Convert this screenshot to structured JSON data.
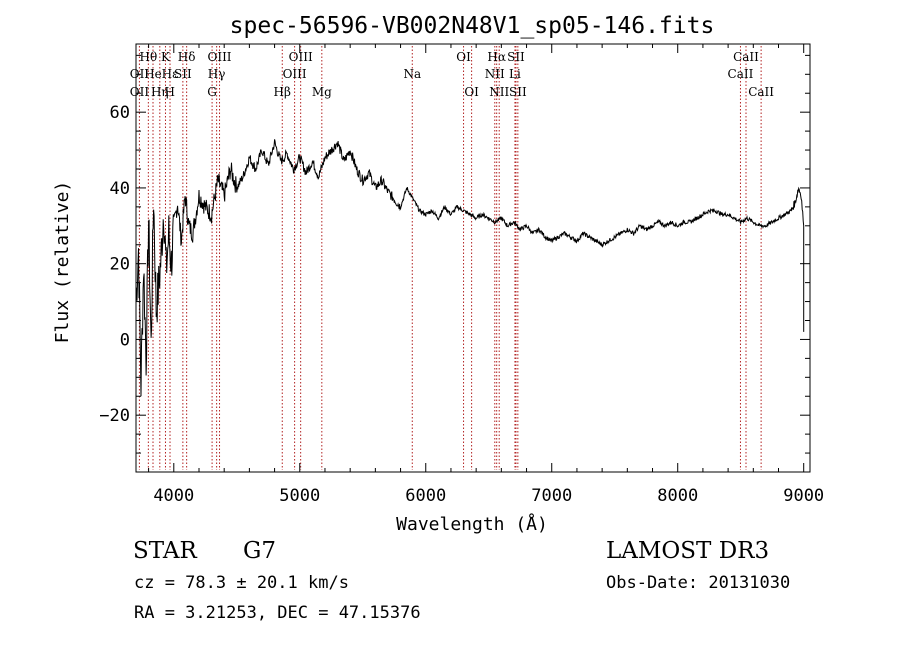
{
  "chart_data": {
    "type": "line",
    "title": "spec-56596-VB002N48V1_sp05-146.fits",
    "xlabel": "Wavelength (Å)",
    "ylabel": "Flux (relative)",
    "xlim": [
      3700,
      9050
    ],
    "ylim": [
      -35,
      78
    ],
    "x_ticks": [
      4000,
      5000,
      6000,
      7000,
      8000,
      9000
    ],
    "y_ticks": [
      -20,
      0,
      20,
      40,
      60
    ],
    "x_tick_labels": [
      "4000",
      "5000",
      "6000",
      "7000",
      "8000",
      "9000"
    ],
    "y_tick_labels": [
      "−20",
      "0",
      "20",
      "40",
      "60"
    ],
    "line_color": "#000000",
    "marker_color": "#b22222",
    "series": [
      {
        "name": "flux",
        "x": [
          3700,
          3720,
          3740,
          3760,
          3780,
          3800,
          3820,
          3840,
          3860,
          3880,
          3900,
          3920,
          3940,
          3960,
          3980,
          4000,
          4030,
          4060,
          4090,
          4120,
          4150,
          4200,
          4250,
          4300,
          4350,
          4400,
          4450,
          4500,
          4550,
          4600,
          4650,
          4700,
          4750,
          4800,
          4850,
          4900,
          4950,
          5000,
          5050,
          5100,
          5150,
          5200,
          5250,
          5300,
          5350,
          5400,
          5450,
          5500,
          5550,
          5600,
          5650,
          5700,
          5750,
          5800,
          5850,
          5900,
          5950,
          6000,
          6050,
          6100,
          6150,
          6200,
          6250,
          6300,
          6350,
          6400,
          6450,
          6500,
          6550,
          6600,
          6650,
          6700,
          6750,
          6800,
          6850,
          6900,
          6950,
          7000,
          7050,
          7100,
          7150,
          7200,
          7250,
          7300,
          7350,
          7400,
          7450,
          7500,
          7550,
          7600,
          7650,
          7700,
          7750,
          7800,
          7850,
          7900,
          7950,
          8000,
          8050,
          8100,
          8150,
          8200,
          8250,
          8300,
          8350,
          8400,
          8450,
          8500,
          8550,
          8600,
          8650,
          8700,
          8750,
          8800,
          8850,
          8900,
          8930,
          8960,
          8980,
          9000
        ],
        "y": [
          10,
          24,
          -12,
          20,
          -5,
          32,
          -2,
          38,
          8,
          14,
          22,
          35,
          18,
          28,
          20,
          30,
          36,
          26,
          38,
          30,
          28,
          38,
          35,
          33,
          42,
          38,
          45,
          40,
          43,
          48,
          45,
          50,
          46,
          52,
          47,
          49,
          45,
          48,
          44,
          47,
          43,
          48,
          50,
          52,
          47,
          50,
          45,
          42,
          44,
          40,
          42,
          39,
          37,
          35,
          40,
          37,
          34,
          33,
          34,
          32,
          35,
          33,
          35,
          34,
          33,
          32,
          33,
          32,
          31,
          32,
          30,
          31,
          29,
          30,
          28,
          29,
          27,
          26,
          27,
          28,
          27,
          26,
          28,
          27,
          26,
          25,
          26,
          27,
          28,
          29,
          28,
          30,
          29,
          30,
          31,
          30,
          31,
          30,
          31,
          31,
          32,
          33,
          34,
          34,
          33,
          33,
          32,
          31,
          32,
          31,
          30,
          30,
          31,
          32,
          33,
          34,
          36,
          40,
          38,
          30
        ]
      }
    ],
    "annotations": [
      {
        "label": "Hθ",
        "x": 3798,
        "row": 0
      },
      {
        "label": "OII",
        "x": 3727,
        "row": 1
      },
      {
        "label": "OII",
        "x": 3727,
        "row": 2
      },
      {
        "label": "He",
        "x": 3835,
        "row": 1
      },
      {
        "label": "Hη",
        "x": 3889,
        "row": 2
      },
      {
        "label": "K",
        "x": 3934,
        "row": 0
      },
      {
        "label": "Hε",
        "x": 3970,
        "row": 1
      },
      {
        "label": "H",
        "x": 3968,
        "row": 2
      },
      {
        "label": "SII",
        "x": 4072,
        "row": 1
      },
      {
        "label": "Hδ",
        "x": 4102,
        "row": 0
      },
      {
        "label": "OIII",
        "x": 4363,
        "row": 0
      },
      {
        "label": "Hγ",
        "x": 4340,
        "row": 1
      },
      {
        "label": "G",
        "x": 4304,
        "row": 2
      },
      {
        "label": "Hβ",
        "x": 4861,
        "row": 2
      },
      {
        "label": "OIII",
        "x": 5007,
        "row": 0
      },
      {
        "label": "OIII",
        "x": 4959,
        "row": 1
      },
      {
        "label": "Mg",
        "x": 5175,
        "row": 2
      },
      {
        "label": "Na",
        "x": 5893,
        "row": 1
      },
      {
        "label": "OI",
        "x": 6300,
        "row": 0
      },
      {
        "label": "OI",
        "x": 6364,
        "row": 2
      },
      {
        "label": "Hα",
        "x": 6563,
        "row": 0
      },
      {
        "label": "NII",
        "x": 6548,
        "row": 1
      },
      {
        "label": "NII",
        "x": 6583,
        "row": 2
      },
      {
        "label": "SII",
        "x": 6716,
        "row": 0
      },
      {
        "label": "Li",
        "x": 6708,
        "row": 1
      },
      {
        "label": "SII",
        "x": 6731,
        "row": 2
      },
      {
        "label": "CaII",
        "x": 8542,
        "row": 0
      },
      {
        "label": "CaII",
        "x": 8498,
        "row": 1
      },
      {
        "label": "CaII",
        "x": 8662,
        "row": 2
      }
    ]
  },
  "info": {
    "class": "STAR",
    "subclass": "G7",
    "cz": "cz = 78.3 ± 20.1 km/s",
    "coords": "RA =   3.21253, DEC =  47.15376",
    "survey": "LAMOST DR3",
    "obs_date": "Obs-Date: 20131030"
  }
}
